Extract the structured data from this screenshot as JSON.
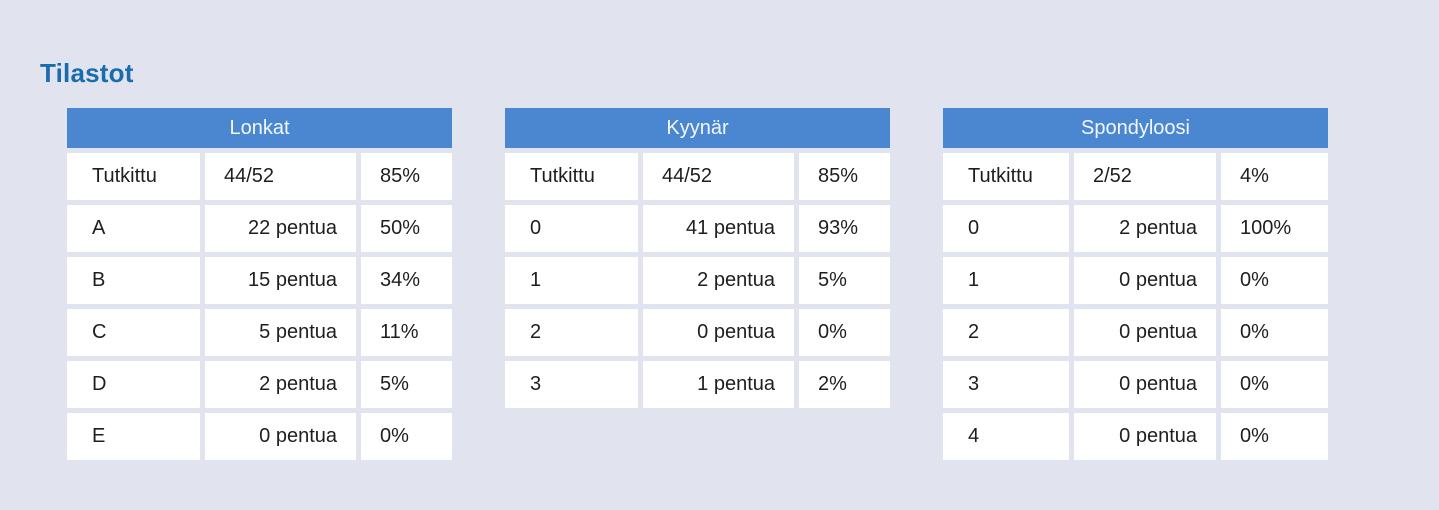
{
  "page": {
    "title": "Tilastot",
    "background": "#e1e4ee"
  },
  "colors": {
    "title_text": "#1a6dad",
    "table_header_bg": "#4b87d1",
    "table_header_text": "#f2f7fd",
    "cell_bg": "#ffffff",
    "cell_text": "#1d1e20"
  },
  "tables": [
    {
      "title": "Lonkat",
      "rows": [
        {
          "label": "Tutkittu",
          "value": "44/52",
          "percent": "85%"
        },
        {
          "label": "A",
          "value": "22 pentua",
          "percent": "50%"
        },
        {
          "label": "B",
          "value": "15 pentua",
          "percent": "34%"
        },
        {
          "label": "C",
          "value": "5 pentua",
          "percent": "11%"
        },
        {
          "label": "D",
          "value": "2 pentua",
          "percent": "5%"
        },
        {
          "label": "E",
          "value": "0 pentua",
          "percent": "0%"
        }
      ]
    },
    {
      "title": "Kyynär",
      "rows": [
        {
          "label": "Tutkittu",
          "value": "44/52",
          "percent": "85%"
        },
        {
          "label": "0",
          "value": "41 pentua",
          "percent": "93%"
        },
        {
          "label": "1",
          "value": "2 pentua",
          "percent": "5%"
        },
        {
          "label": "2",
          "value": "0 pentua",
          "percent": "0%"
        },
        {
          "label": "3",
          "value": "1 pentua",
          "percent": "2%"
        }
      ]
    },
    {
      "title": "Spondyloosi",
      "rows": [
        {
          "label": "Tutkittu",
          "value": "2/52",
          "percent": "4%"
        },
        {
          "label": "0",
          "value": "2 pentua",
          "percent": "100%"
        },
        {
          "label": "1",
          "value": "0 pentua",
          "percent": "0%"
        },
        {
          "label": "2",
          "value": "0 pentua",
          "percent": "0%"
        },
        {
          "label": "3",
          "value": "0 pentua",
          "percent": "0%"
        },
        {
          "label": "4",
          "value": "0 pentua",
          "percent": "0%"
        }
      ]
    }
  ]
}
